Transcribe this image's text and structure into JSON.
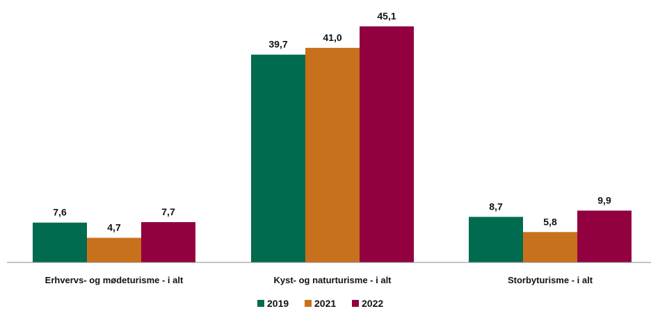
{
  "chart_data": {
    "type": "bar",
    "title": "",
    "xlabel": "",
    "ylabel": "",
    "categories": [
      "Erhvervs- og mødeturisme - i alt",
      "Kyst- og naturturisme - i alt",
      "Storbyturisme - i alt"
    ],
    "series": [
      {
        "name": "2019",
        "color": "#006B4E",
        "values": [
          7.6,
          39.7,
          8.7
        ],
        "labels": [
          "7,6",
          "39,7",
          "8,7"
        ]
      },
      {
        "name": "2021",
        "color": "#C8711C",
        "values": [
          4.7,
          41.0,
          5.8
        ],
        "labels": [
          "4,7",
          "41,0",
          "5,8"
        ]
      },
      {
        "name": "2022",
        "color": "#920040",
        "values": [
          7.7,
          45.1,
          9.9
        ],
        "labels": [
          "7,7",
          "45,1",
          "9,9"
        ]
      }
    ],
    "ylim": [
      0,
      45.1
    ],
    "grid": false,
    "legend": "bottom-center"
  }
}
